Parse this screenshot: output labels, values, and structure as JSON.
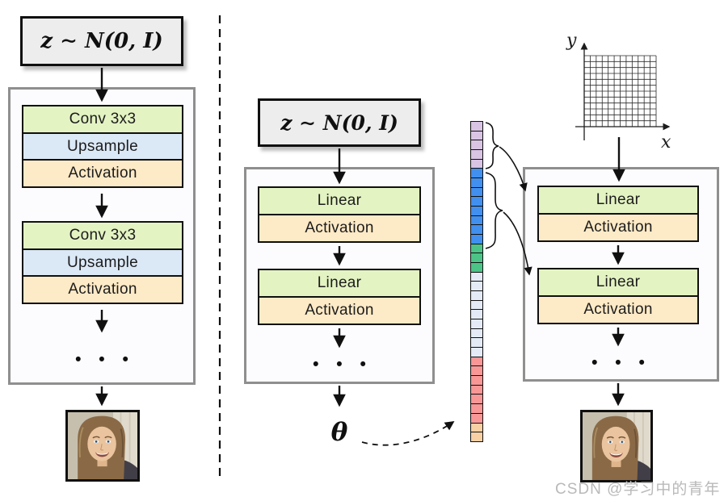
{
  "figure": {
    "left_generator": {
      "latent_label": "z ∼ N(0, I)",
      "stack1": [
        "Conv 3x3",
        "Upsample",
        "Activation"
      ],
      "stack2": [
        "Conv 3x3",
        "Upsample",
        "Activation"
      ],
      "ellipsis": "• • •"
    },
    "hypernetwork": {
      "latent_label": "z ∼ N(0, I)",
      "stack1": [
        "Linear",
        "Activation"
      ],
      "stack2": [
        "Linear",
        "Activation"
      ],
      "ellipsis": "• • •",
      "theta_label": "θ"
    },
    "param_vector": {
      "segments": [
        {
          "name": "purple",
          "color": "#d9c4e4",
          "count": 5
        },
        {
          "name": "blue",
          "color": "#4190f0",
          "count": 8
        },
        {
          "name": "green",
          "color": "#4cc487",
          "count": 3
        },
        {
          "name": "pale",
          "color": "#e4ebf6",
          "count": 9
        },
        {
          "name": "pink",
          "color": "#f99797",
          "count": 7
        },
        {
          "name": "peach",
          "color": "#f8d0a4",
          "count": 2
        }
      ]
    },
    "coordinate_network": {
      "x_axis_label": "x",
      "y_axis_label": "y",
      "grid_cols": 12,
      "grid_rows": 12,
      "stack1": [
        "Linear",
        "Activation"
      ],
      "stack2": [
        "Linear",
        "Activation"
      ],
      "ellipsis": "• • •"
    },
    "block_colors": {
      "conv_linear": "#e3f3c2",
      "upsample": "#dbe8f6",
      "activation": "#fdeac6"
    }
  },
  "watermark": {
    "text": "CSDN @学习中的青年"
  }
}
